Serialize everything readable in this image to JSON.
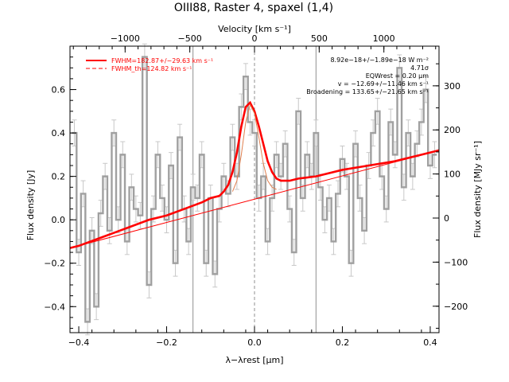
{
  "chart_data": {
    "type": "line",
    "title": "OIII88, Raster 4, spaxel (1,4)",
    "xlabel": "λ−λrest [μm]",
    "ylabel_left": "Flux density [Jy]",
    "ylabel_right": "Flux density [MJy sr⁻¹]",
    "top_axis_label": "Velocity [km s⁻¹]",
    "xlim": [
      -0.42,
      0.42
    ],
    "ylim": [
      -0.52,
      0.8
    ],
    "right_ylim": [
      -260,
      390
    ],
    "x_ticks": [
      -0.4,
      -0.2,
      0.0,
      0.2,
      0.4
    ],
    "x_tick_labels": [
      "−0.4",
      "−0.2",
      "0.0",
      "0.2",
      "0.4"
    ],
    "y_ticks": [
      -0.4,
      -0.2,
      0.0,
      0.2,
      0.4,
      0.6
    ],
    "y_tick_labels": [
      "−0.4",
      "−0.2",
      "0.0",
      "0.2",
      "0.4",
      "0.6"
    ],
    "right_ticks": [
      -200,
      -100,
      0,
      100,
      200,
      300
    ],
    "right_tick_labels": [
      "−200",
      "−100",
      "0",
      "100",
      "200",
      "300"
    ],
    "top_ticks": [
      -1000,
      -500,
      0,
      500,
      1000
    ],
    "top_tick_labels": [
      "−1000",
      "−500",
      "0",
      "500",
      "1000"
    ],
    "vertical_markers": [
      -0.14,
      0.0,
      0.14
    ],
    "legend": [
      {
        "label": "FWHM=182.87+/−29.63 km s⁻¹",
        "style": "solid",
        "color": "#ff0000"
      },
      {
        "label": "FWHM_th=124.82 km s⁻¹",
        "style": "dashed",
        "color": "#ff0000"
      }
    ],
    "annotations": [
      "8.92e−18+/−1.89e−18 W m⁻²",
      "4.71σ",
      "EQWrest = 0.20 μm",
      "v = −12.69+/−11.46 km s⁻¹",
      "Broadening = 133.65+/−21.65 km s⁻¹"
    ],
    "series": [
      {
        "name": "data",
        "color": "#a0a0a0",
        "style": "step",
        "x": [
          -0.41,
          -0.4,
          -0.39,
          -0.38,
          -0.37,
          -0.36,
          -0.35,
          -0.34,
          -0.33,
          -0.32,
          -0.31,
          -0.3,
          -0.29,
          -0.28,
          -0.27,
          -0.26,
          -0.25,
          -0.24,
          -0.23,
          -0.22,
          -0.21,
          -0.2,
          -0.19,
          -0.18,
          -0.17,
          -0.16,
          -0.15,
          -0.14,
          -0.13,
          -0.12,
          -0.11,
          -0.1,
          -0.09,
          -0.08,
          -0.07,
          -0.06,
          -0.05,
          -0.04,
          -0.03,
          -0.02,
          -0.01,
          0.0,
          0.01,
          0.02,
          0.03,
          0.04,
          0.05,
          0.06,
          0.07,
          0.08,
          0.09,
          0.1,
          0.11,
          0.12,
          0.13,
          0.14,
          0.15,
          0.16,
          0.17,
          0.18,
          0.19,
          0.2,
          0.21,
          0.22,
          0.23,
          0.24,
          0.25,
          0.26,
          0.27,
          0.28,
          0.29,
          0.3,
          0.31,
          0.32,
          0.33,
          0.34,
          0.35,
          0.36,
          0.37,
          0.38,
          0.39,
          0.4,
          0.41
        ],
        "y": [
          0.4,
          -0.15,
          0.12,
          -0.47,
          -0.05,
          -0.4,
          0.03,
          0.2,
          -0.05,
          0.4,
          0.0,
          0.3,
          -0.1,
          0.15,
          0.05,
          0.02,
          0.75,
          -0.3,
          0.05,
          0.3,
          0.1,
          0.0,
          0.25,
          -0.2,
          0.38,
          0.05,
          -0.1,
          0.15,
          0.1,
          0.3,
          -0.2,
          0.1,
          -0.25,
          0.05,
          0.2,
          0.12,
          0.38,
          0.2,
          0.52,
          0.66,
          0.45,
          0.4,
          0.1,
          0.2,
          -0.1,
          0.1,
          0.3,
          0.2,
          0.35,
          0.05,
          -0.15,
          0.5,
          0.1,
          0.3,
          0.2,
          0.4,
          0.15,
          0.0,
          0.1,
          -0.1,
          0.12,
          0.28,
          0.2,
          -0.2,
          0.35,
          0.1,
          -0.05,
          0.25,
          0.4,
          0.5,
          0.2,
          0.05,
          0.45,
          0.3,
          0.7,
          0.15,
          0.4,
          0.2,
          0.35,
          0.45,
          0.6,
          0.25,
          0.3
        ],
        "yerr": 0.06
      },
      {
        "name": "fit",
        "color": "#ff0000",
        "style": "solid",
        "x": [
          -0.42,
          -0.4,
          -0.36,
          -0.32,
          -0.28,
          -0.24,
          -0.2,
          -0.16,
          -0.12,
          -0.1,
          -0.08,
          -0.07,
          -0.06,
          -0.05,
          -0.04,
          -0.03,
          -0.02,
          -0.01,
          0.0,
          0.01,
          0.02,
          0.03,
          0.04,
          0.05,
          0.06,
          0.08,
          0.1,
          0.14,
          0.2,
          0.26,
          0.32,
          0.38,
          0.42
        ],
        "y": [
          -0.13,
          -0.12,
          -0.09,
          -0.06,
          -0.03,
          0.0,
          0.02,
          0.05,
          0.08,
          0.1,
          0.11,
          0.13,
          0.16,
          0.22,
          0.31,
          0.43,
          0.52,
          0.54,
          0.5,
          0.43,
          0.35,
          0.27,
          0.22,
          0.19,
          0.18,
          0.18,
          0.19,
          0.2,
          0.23,
          0.25,
          0.27,
          0.3,
          0.32
        ]
      },
      {
        "name": "continuum",
        "color": "#ff0000",
        "style": "thin",
        "x": [
          -0.42,
          0.42
        ],
        "y": [
          -0.13,
          0.32
        ]
      },
      {
        "name": "line_th",
        "color": "#e08050",
        "style": "thin",
        "x": [
          -0.05,
          -0.04,
          -0.03,
          -0.02,
          -0.01,
          0.0,
          0.01,
          0.02,
          0.03,
          0.04,
          0.05
        ],
        "y": [
          0.13,
          0.18,
          0.3,
          0.45,
          0.53,
          0.49,
          0.38,
          0.26,
          0.18,
          0.15,
          0.14
        ]
      }
    ],
    "grid": false
  }
}
